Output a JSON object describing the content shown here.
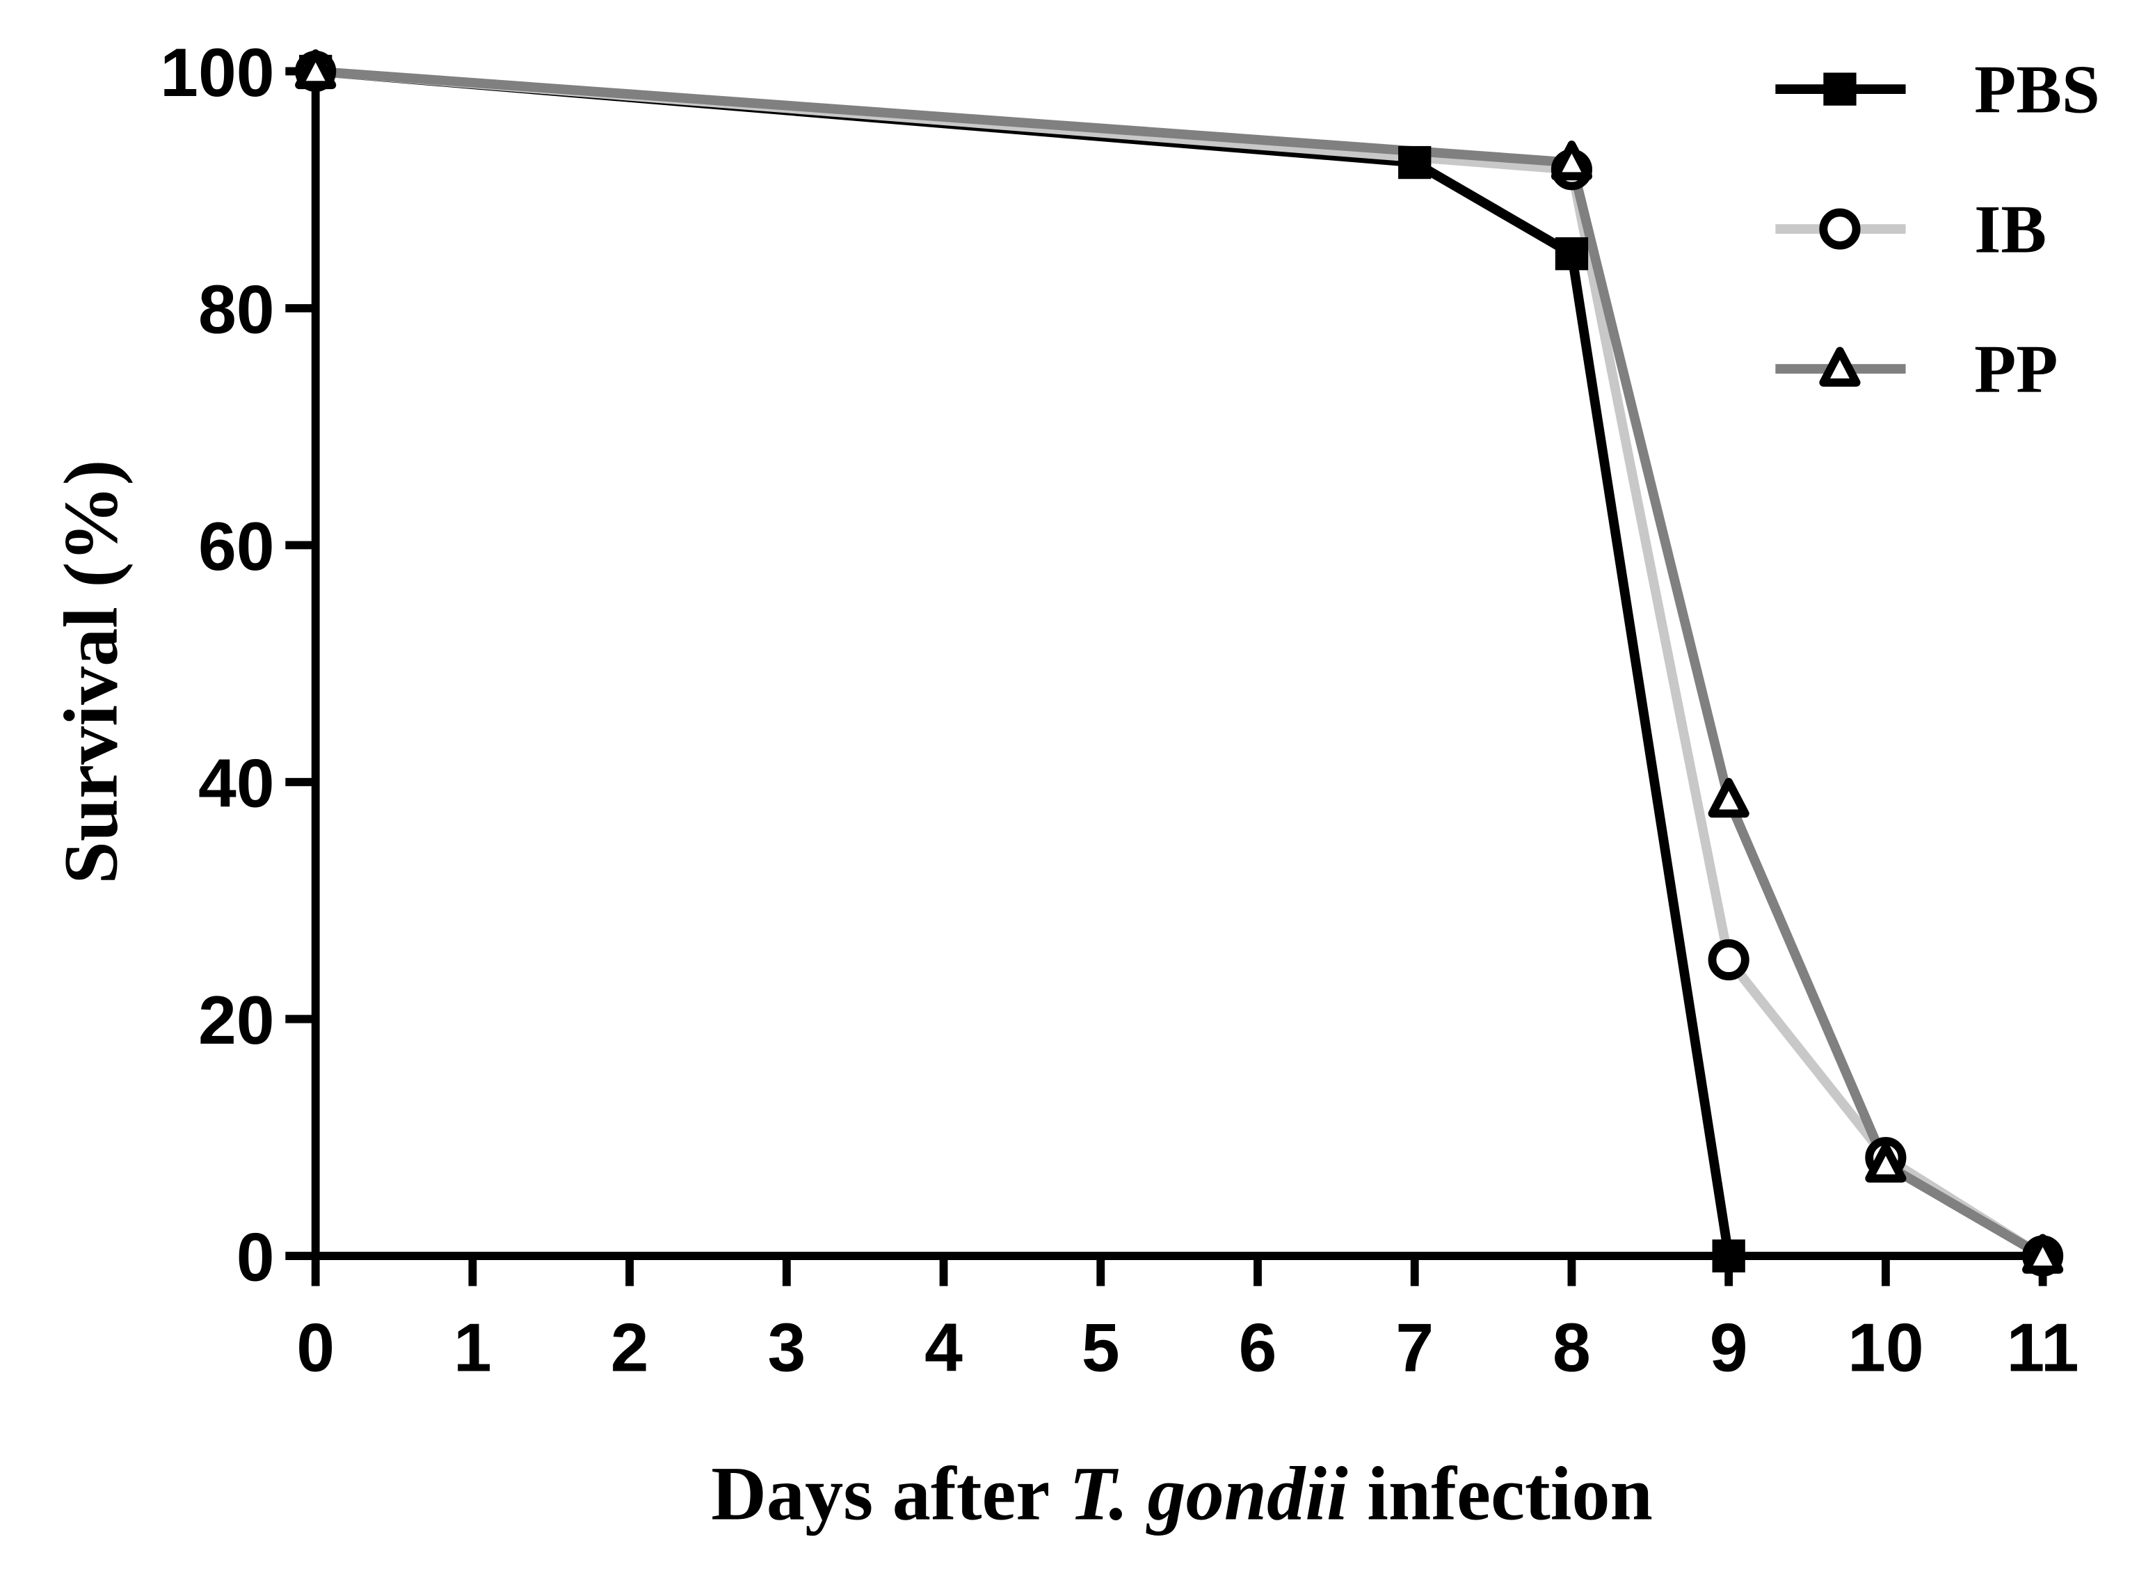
{
  "chart_data": {
    "type": "line",
    "xlabel_parts": [
      "Days after",
      "T. gondii",
      "infection"
    ],
    "ylabel": "Survival (%)",
    "xlim": [
      0,
      11
    ],
    "xticks": [
      0,
      1,
      2,
      3,
      4,
      5,
      6,
      7,
      8,
      9,
      10,
      11
    ],
    "ylim": [
      0,
      100
    ],
    "yticks": [
      0,
      20,
      40,
      60,
      80,
      100
    ],
    "legend": "top-right",
    "series": [
      {
        "name": "PBS",
        "color": "#000000",
        "marker": "square",
        "x": [
          0,
          7,
          8,
          9
        ],
        "values": [
          100,
          92.3,
          84.6,
          0
        ]
      },
      {
        "name": "IB",
        "color": "#c8c8c8",
        "marker": "circle",
        "x": [
          0,
          8,
          9,
          10,
          11
        ],
        "values": [
          100,
          91.7,
          25,
          8.3,
          0
        ]
      },
      {
        "name": "PP",
        "color": "#808080",
        "marker": "triangle",
        "x": [
          0,
          8,
          9,
          10,
          11
        ],
        "values": [
          100,
          92.3,
          38.5,
          7.7,
          0
        ]
      }
    ]
  }
}
